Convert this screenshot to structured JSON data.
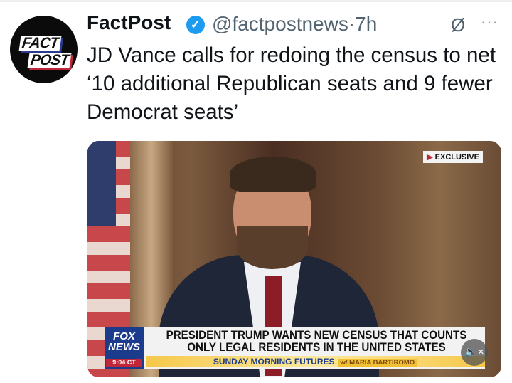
{
  "tweet": {
    "display_name": "FactPost",
    "verified_icon": "verified-badge-icon",
    "handle": "@factpostnews",
    "separator": "·",
    "time": "7h",
    "grok_icon": "Ø",
    "more_icon": "···",
    "text": "JD Vance calls for redoing the census to net ‘10 additional Republican seats and 9 fewer Democrat seats’",
    "avatar": {
      "line1": "FACT",
      "line2": "POST"
    }
  },
  "media": {
    "exclusive_label": "EXCLUSIVE",
    "chyron_line1": "PRESIDENT TRUMP WANTS NEW CENSUS THAT COUNTS",
    "chyron_line2": "ONLY LEGAL RESIDENTS IN THE UNITED STATES",
    "show_name": "SUNDAY MORNING FUTURES",
    "host": "w/ MARIA BARTIROMO",
    "network_line1": "FOX",
    "network_line2": "NEWS",
    "clock": "9:04 CT",
    "mute_icon": "🔈×"
  }
}
